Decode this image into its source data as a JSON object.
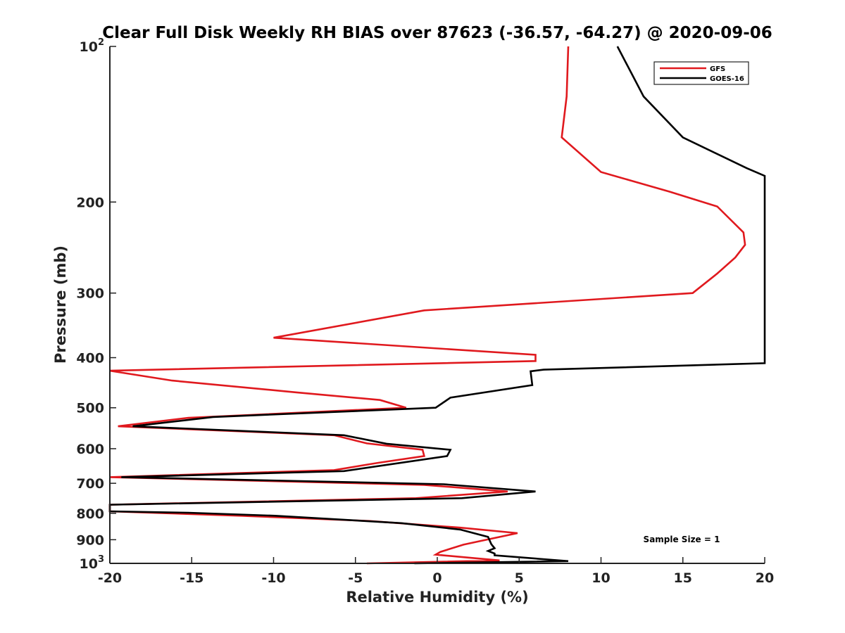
{
  "chart_data": {
    "type": "line",
    "title": "Clear Full Disk Weekly RH BIAS over 87623 (-36.57, -64.27) @ 2020-09-06",
    "xlabel": "Relative Humidity (%)",
    "ylabel": "Pressure (mb)",
    "xlim": [
      -20,
      20
    ],
    "ylim": [
      100,
      1000
    ],
    "y_scale": "log",
    "y_reversed": true,
    "grid": false,
    "legend_position": "top-right",
    "x_ticks": [
      "-20",
      "-15",
      "-10",
      "-5",
      "0",
      "5",
      "10",
      "15",
      "20"
    ],
    "x_tick_values": [
      -20,
      -15,
      -10,
      -5,
      0,
      5,
      10,
      15,
      20
    ],
    "y_ticks": [
      {
        "value": 100,
        "base": "10",
        "exp": "2"
      },
      {
        "value": 200,
        "label": "200"
      },
      {
        "value": 300,
        "label": "300"
      },
      {
        "value": 400,
        "label": "400"
      },
      {
        "value": 500,
        "label": "500"
      },
      {
        "value": 600,
        "label": "600"
      },
      {
        "value": 700,
        "label": "700"
      },
      {
        "value": 800,
        "label": "800"
      },
      {
        "value": 900,
        "label": "900"
      },
      {
        "value": 1000,
        "base": "10",
        "exp": "3"
      }
    ],
    "annotation": "Sample Size = 1",
    "series": [
      {
        "name": "GFS",
        "color": "#e0191e",
        "points": [
          [
            8.0,
            100
          ],
          [
            7.9,
            125
          ],
          [
            7.6,
            150
          ],
          [
            10.0,
            175
          ],
          [
            14.2,
            191
          ],
          [
            17.1,
            204
          ],
          [
            18.7,
            229
          ],
          [
            18.8,
            242
          ],
          [
            18.2,
            256
          ],
          [
            17.1,
            275
          ],
          [
            15.6,
            300
          ],
          [
            -0.8,
            324
          ],
          [
            -10.0,
            366
          ],
          [
            6.0,
            395
          ],
          [
            6.0,
            406
          ],
          [
            -20.0,
            424
          ],
          [
            -16.2,
            443
          ],
          [
            -8.6,
            467
          ],
          [
            -3.5,
            483
          ],
          [
            -1.9,
            500
          ],
          [
            -15.2,
            523
          ],
          [
            -19.5,
            543
          ],
          [
            -6.3,
            565
          ],
          [
            -4.3,
            586
          ],
          [
            -0.9,
            603
          ],
          [
            -0.8,
            620
          ],
          [
            -3.6,
            639
          ],
          [
            -6.3,
            660
          ],
          [
            -20.0,
            681
          ],
          [
            -0.8,
            705
          ],
          [
            4.3,
            726
          ],
          [
            -1.3,
            748
          ],
          [
            -20.0,
            770
          ],
          [
            -20.0,
            793
          ],
          [
            -12.0,
            809
          ],
          [
            -4.1,
            828
          ],
          [
            1.4,
            853
          ],
          [
            4.9,
            874
          ],
          [
            2.8,
            903
          ],
          [
            1.6,
            920
          ],
          [
            0.2,
            950
          ],
          [
            -0.1,
            962
          ],
          [
            3.8,
            987
          ],
          [
            -4.3,
            1000
          ]
        ]
      },
      {
        "name": "GOES-16",
        "color": "#000000",
        "points": [
          [
            11.0,
            100
          ],
          [
            12.6,
            125
          ],
          [
            15.0,
            150
          ],
          [
            18.9,
            172
          ],
          [
            20.0,
            178
          ],
          [
            20.0,
            410
          ],
          [
            6.5,
            422
          ],
          [
            5.7,
            425
          ],
          [
            5.8,
            452
          ],
          [
            0.8,
            478
          ],
          [
            -0.1,
            500
          ],
          [
            -13.7,
            521
          ],
          [
            -18.6,
            543
          ],
          [
            -5.7,
            565
          ],
          [
            -3.1,
            587
          ],
          [
            0.8,
            603
          ],
          [
            0.6,
            620
          ],
          [
            -5.7,
            663
          ],
          [
            -19.3,
            681
          ],
          [
            0.4,
            703
          ],
          [
            6.0,
            726
          ],
          [
            1.5,
            748
          ],
          [
            -20.0,
            770
          ],
          [
            -20.0,
            793
          ],
          [
            -15.2,
            798
          ],
          [
            -9.9,
            809
          ],
          [
            -2.2,
            836
          ],
          [
            1.4,
            860
          ],
          [
            3.1,
            889
          ],
          [
            3.3,
            918
          ],
          [
            3.5,
            935
          ],
          [
            3.1,
            946
          ],
          [
            3.5,
            957
          ],
          [
            3.5,
            965
          ],
          [
            8.0,
            990
          ],
          [
            -1.4,
            1000
          ]
        ]
      }
    ]
  }
}
